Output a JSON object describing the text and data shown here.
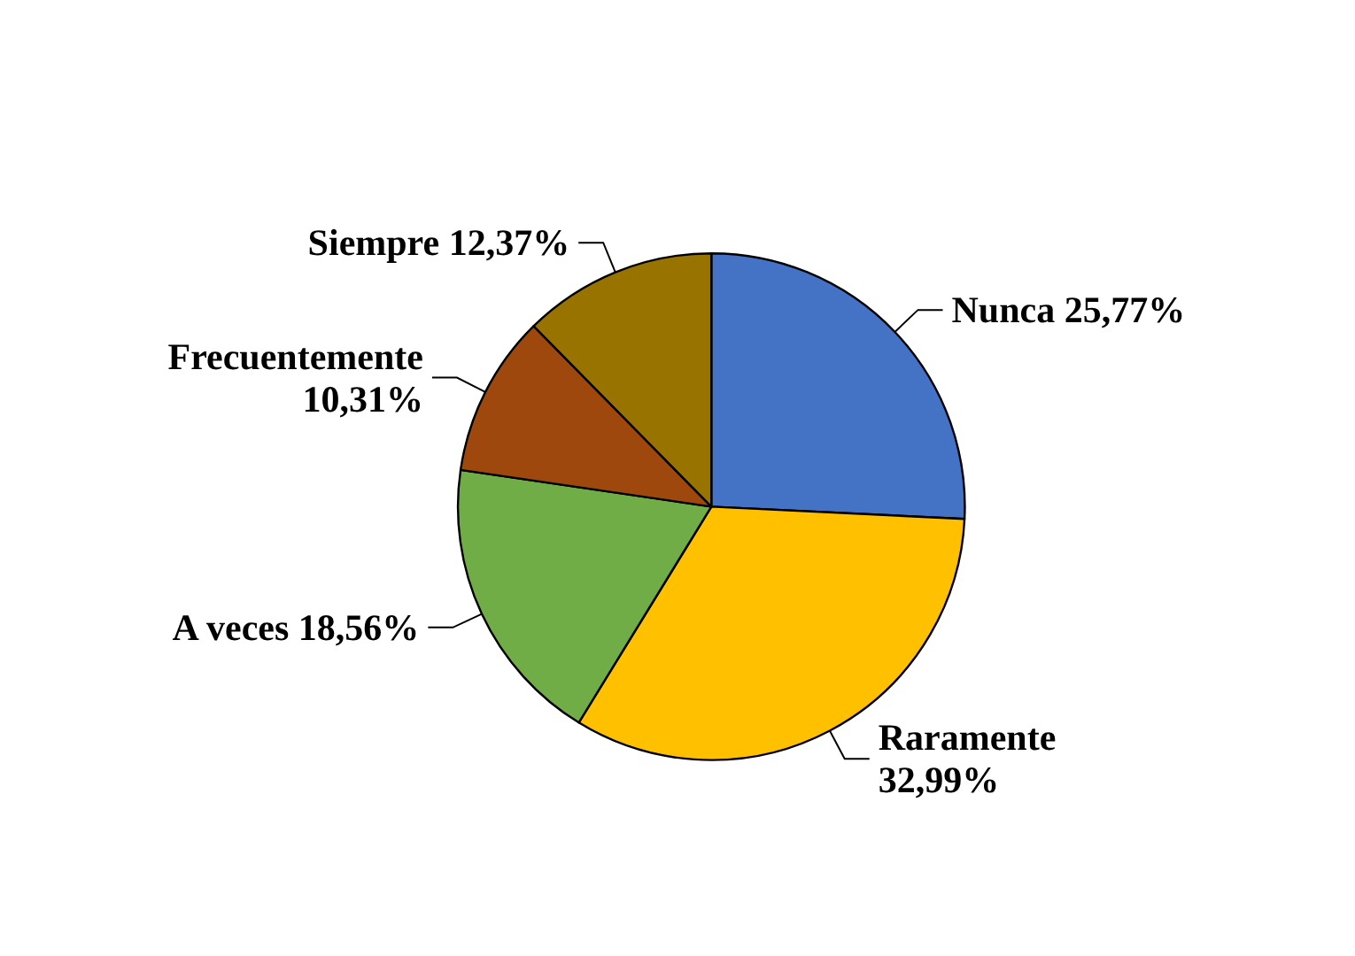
{
  "chart_data": {
    "type": "pie",
    "categories": [
      "Nunca",
      "Raramente",
      "A veces",
      "Frecuentemente",
      "Siempre"
    ],
    "values": [
      25.77,
      32.99,
      18.56,
      10.31,
      12.37
    ],
    "colors": [
      "#4472c4",
      "#ffc000",
      "#70ad47",
      "#9e480e",
      "#997300"
    ],
    "value_labels": [
      "25,77%",
      "32,99%",
      "18,56%",
      "10,31%",
      "12,37%"
    ],
    "legend": false
  }
}
